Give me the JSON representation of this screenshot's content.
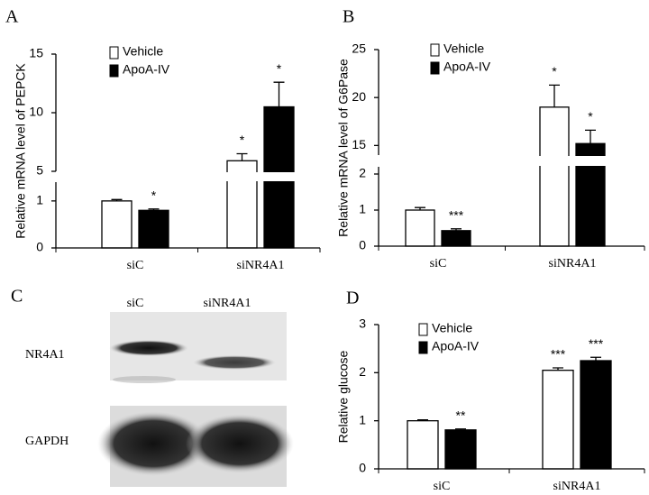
{
  "chart_data": [
    {
      "type": "bar",
      "panel": "A",
      "y_label": "Relative mRNA level of PEPCK",
      "categories": [
        "siC",
        "siNR4A1"
      ],
      "series": [
        {
          "name": "Vehicle",
          "color": "#ffffff",
          "values": [
            1.0,
            5.9
          ],
          "errors": [
            0.03,
            0.6
          ],
          "significance": [
            null,
            "*"
          ]
        },
        {
          "name": "ApoA-IV",
          "color": "#000000",
          "values": [
            0.8,
            10.5
          ],
          "errors": [
            0.03,
            2.1
          ],
          "significance": [
            "*",
            "*"
          ]
        }
      ],
      "ylim_segments": [
        [
          0,
          1.4
        ],
        [
          5,
          15
        ]
      ],
      "yticks": [
        0,
        1,
        5,
        10,
        15
      ],
      "legend": "upper left"
    },
    {
      "type": "bar",
      "panel": "B",
      "y_label": "Relative mRNA level of G6Pase",
      "categories": [
        "siC",
        "siNR4A1"
      ],
      "series": [
        {
          "name": "Vehicle",
          "color": "#ffffff",
          "values": [
            1.0,
            19.0
          ],
          "errors": [
            0.07,
            2.3
          ],
          "significance": [
            null,
            "*"
          ]
        },
        {
          "name": "ApoA-IV",
          "color": "#000000",
          "values": [
            0.43,
            15.2
          ],
          "errors": [
            0.05,
            1.4
          ],
          "significance": [
            "***",
            "*"
          ]
        }
      ],
      "ylim_segments": [
        [
          0,
          2.2
        ],
        [
          14,
          25
        ]
      ],
      "yticks": [
        0,
        1,
        2,
        15,
        20,
        25
      ],
      "legend": "upper left"
    },
    {
      "type": "bar",
      "panel": "D",
      "y_label": "Relative glucose",
      "categories": [
        "siC",
        "siNR4A1"
      ],
      "series": [
        {
          "name": "Vehicle",
          "color": "#ffffff",
          "values": [
            1.0,
            2.05
          ],
          "errors": [
            0.02,
            0.05
          ],
          "significance": [
            null,
            "***"
          ]
        },
        {
          "name": "ApoA-IV",
          "color": "#000000",
          "values": [
            0.81,
            2.25
          ],
          "errors": [
            0.02,
            0.07
          ],
          "significance": [
            "**",
            "***"
          ]
        }
      ],
      "ylim": [
        0,
        3
      ],
      "yticks": [
        0,
        1,
        2,
        3
      ],
      "legend": "upper left"
    }
  ],
  "blot": {
    "panel": "C",
    "lanes": [
      "siC",
      "siNR4A1"
    ],
    "rows": [
      "NR4A1",
      "GAPDH"
    ]
  }
}
